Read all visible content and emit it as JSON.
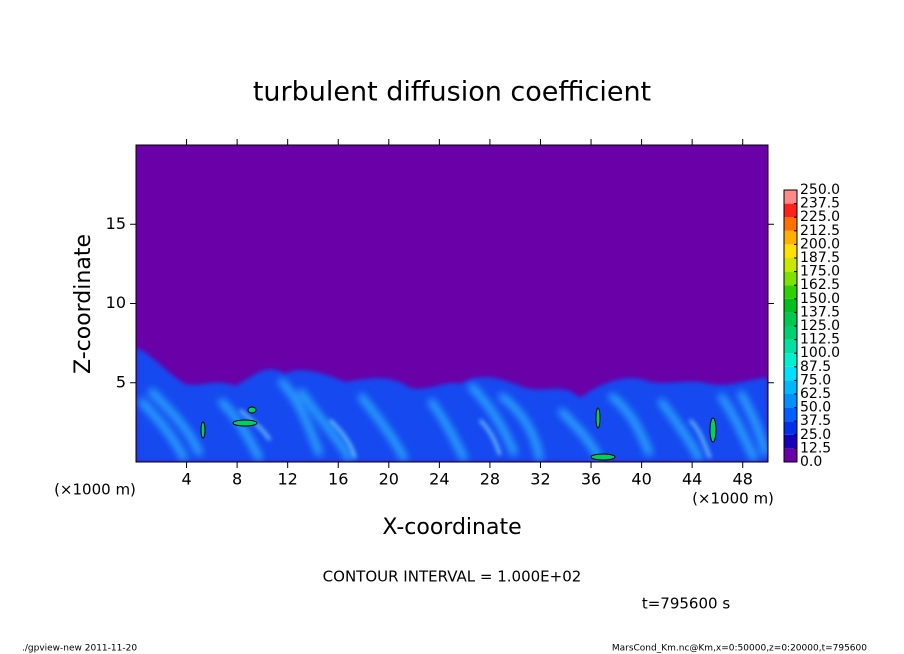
{
  "chart_data": {
    "type": "contour",
    "title": "turbulent diffusion coefficient",
    "xlabel": "X-coordinate",
    "ylabel": "Z-coordinate",
    "x_unit": "(×1000 m)",
    "y_unit": "(×1000 m)",
    "xlim": [
      0,
      50
    ],
    "xticks": [
      4,
      8,
      12,
      16,
      20,
      24,
      28,
      32,
      36,
      40,
      44,
      48
    ],
    "ylim": [
      0,
      20
    ],
    "yticks": [
      5,
      10,
      15
    ],
    "annotation": "CONTOUR INTERVAL = 1.000E+02",
    "time_label": "t=795600 s",
    "colorbar": {
      "ticks": [
        {
          "value": 0,
          "label": "0.0"
        },
        {
          "value": 12.5,
          "label": "12.5"
        },
        {
          "value": 25,
          "label": "25.0"
        },
        {
          "value": 37.5,
          "label": "37.5"
        },
        {
          "value": 50,
          "label": "50.0"
        },
        {
          "value": 62.5,
          "label": "62.5"
        },
        {
          "value": 75,
          "label": "75.0"
        },
        {
          "value": 87.5,
          "label": "87.5"
        },
        {
          "value": 100,
          "label": "100.0"
        },
        {
          "value": 112.5,
          "label": "112.5"
        },
        {
          "value": 125,
          "label": "125.0"
        },
        {
          "value": 137.5,
          "label": "137.5"
        },
        {
          "value": 150,
          "label": "150.0"
        },
        {
          "value": 162.5,
          "label": "162.5"
        },
        {
          "value": 175,
          "label": "175.0"
        },
        {
          "value": 187.5,
          "label": "187.5"
        },
        {
          "value": 200,
          "label": "200.0"
        },
        {
          "value": 212.5,
          "label": "212.5"
        },
        {
          "value": 225,
          "label": "225.0"
        },
        {
          "value": 237.5,
          "label": "237.5"
        },
        {
          "value": 250,
          "label": "250.0"
        }
      ],
      "colors": [
        "#6a00a8",
        "#1800b8",
        "#0030e8",
        "#0060ff",
        "#0090ff",
        "#00b8ff",
        "#00e0ff",
        "#00f0d0",
        "#00e0a0",
        "#00d070",
        "#00c850",
        "#00c020",
        "#30d000",
        "#80e000",
        "#c8e800",
        "#ffe000",
        "#ffb000",
        "#ff7000",
        "#ff2020",
        "#ff8888"
      ]
    }
  },
  "footer_left": "./gpview-new  2011-11-20",
  "footer_right": "MarsCond_Km.nc@Km,x=0:50000,z=0:20000,t=795600"
}
